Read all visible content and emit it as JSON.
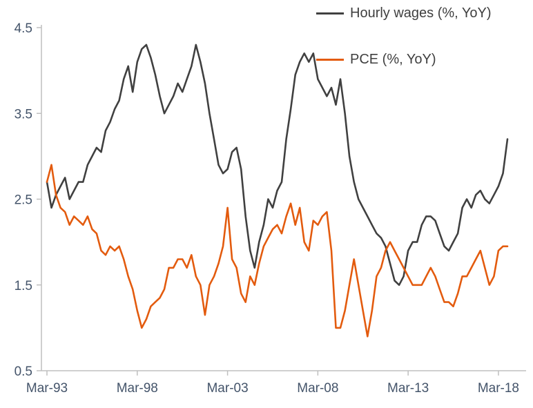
{
  "chart_data": {
    "type": "line",
    "title": "",
    "x_axis": {
      "ticks": [
        {
          "label": "Mar-93",
          "year": 1993.25
        },
        {
          "label": "Mar-98",
          "year": 1998.25
        },
        {
          "label": "Mar-03",
          "year": 2003.25
        },
        {
          "label": "Mar-08",
          "year": 2008.25
        },
        {
          "label": "Mar-13",
          "year": 2013.25
        },
        {
          "label": "Mar-18",
          "year": 2018.25
        }
      ]
    },
    "y_axis": {
      "min": 0.5,
      "max": 4.5,
      "ticks": [
        {
          "label": "4.5",
          "value": 4.5
        },
        {
          "label": "3.5",
          "value": 3.5
        },
        {
          "label": "2.5",
          "value": 2.5
        },
        {
          "label": "1.5",
          "value": 1.5
        },
        {
          "label": "0.5",
          "value": 0.5
        }
      ]
    },
    "x_start": 1993.25,
    "x_step": 0.25,
    "grid": false,
    "legend_position": "top-right",
    "series": [
      {
        "id": "hourly-wages-line",
        "name": "Hourly wages (%, YoY)",
        "color": "#404040",
        "values": [
          2.7,
          2.4,
          2.55,
          2.65,
          2.75,
          2.5,
          2.6,
          2.7,
          2.7,
          2.9,
          3.0,
          3.1,
          3.05,
          3.3,
          3.4,
          3.55,
          3.65,
          3.9,
          4.05,
          3.75,
          4.1,
          4.25,
          4.3,
          4.15,
          3.95,
          3.7,
          3.5,
          3.6,
          3.7,
          3.85,
          3.75,
          3.9,
          4.05,
          4.3,
          4.1,
          3.85,
          3.5,
          3.2,
          2.9,
          2.8,
          2.85,
          3.05,
          3.1,
          2.85,
          2.3,
          1.9,
          1.7,
          2.0,
          2.2,
          2.5,
          2.4,
          2.6,
          2.7,
          3.2,
          3.55,
          3.95,
          4.1,
          4.2,
          4.1,
          4.2,
          3.9,
          3.8,
          3.7,
          3.8,
          3.6,
          3.9,
          3.5,
          3.0,
          2.7,
          2.5,
          2.4,
          2.3,
          2.2,
          2.1,
          2.05,
          1.95,
          1.75,
          1.55,
          1.5,
          1.6,
          1.9,
          2.0,
          2.0,
          2.2,
          2.3,
          2.3,
          2.25,
          2.1,
          1.95,
          1.9,
          2.0,
          2.1,
          2.4,
          2.5,
          2.4,
          2.55,
          2.6,
          2.5,
          2.45,
          2.55,
          2.65,
          2.8,
          3.2
        ]
      },
      {
        "id": "pce-line",
        "name": "PCE (%, YoY)",
        "color": "#e35b0e",
        "values": [
          2.7,
          2.9,
          2.55,
          2.4,
          2.35,
          2.2,
          2.3,
          2.25,
          2.2,
          2.3,
          2.15,
          2.1,
          1.9,
          1.85,
          1.95,
          1.9,
          1.95,
          1.8,
          1.6,
          1.45,
          1.2,
          1.0,
          1.1,
          1.25,
          1.3,
          1.35,
          1.45,
          1.7,
          1.7,
          1.8,
          1.8,
          1.7,
          1.85,
          1.6,
          1.5,
          1.15,
          1.5,
          1.6,
          1.75,
          1.95,
          2.4,
          1.8,
          1.7,
          1.4,
          1.3,
          1.6,
          1.5,
          1.75,
          1.95,
          2.05,
          2.15,
          2.2,
          2.1,
          2.3,
          2.45,
          2.2,
          2.4,
          2.0,
          1.9,
          2.25,
          2.2,
          2.3,
          2.35,
          1.9,
          1.0,
          1.0,
          1.2,
          1.5,
          1.8,
          1.5,
          1.2,
          0.9,
          1.2,
          1.6,
          1.7,
          1.9,
          2.0,
          1.9,
          1.8,
          1.7,
          1.6,
          1.5,
          1.5,
          1.5,
          1.6,
          1.7,
          1.6,
          1.45,
          1.3,
          1.3,
          1.25,
          1.4,
          1.6,
          1.6,
          1.7,
          1.8,
          1.9,
          1.7,
          1.5,
          1.6,
          1.9,
          1.95,
          1.95
        ]
      }
    ]
  }
}
